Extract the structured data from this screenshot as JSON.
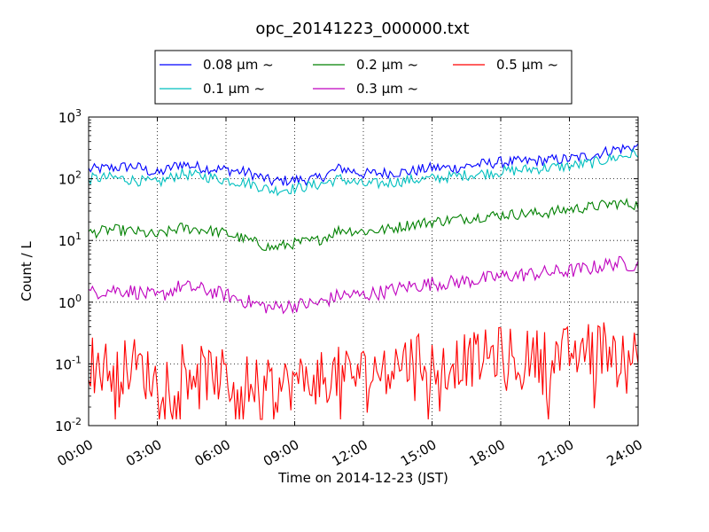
{
  "chart_data": {
    "type": "line",
    "title": "opc_20141223_000000.txt",
    "xlabel": "Time on 2014-12-23 (JST)",
    "ylabel": "Count / L",
    "x_ticks": [
      "00:00",
      "03:00",
      "06:00",
      "09:00",
      "12:00",
      "15:00",
      "18:00",
      "21:00",
      "24:00"
    ],
    "y_ticks": [
      {
        "base": "10",
        "exp": "-2"
      },
      {
        "base": "10",
        "exp": "-1"
      },
      {
        "base": "10",
        "exp": "0"
      },
      {
        "base": "10",
        "exp": "1"
      },
      {
        "base": "10",
        "exp": "2"
      },
      {
        "base": "10",
        "exp": "3"
      }
    ],
    "x_range_hours": [
      0,
      24
    ],
    "ylim": [
      0.01,
      1000
    ],
    "y_scale": "log",
    "grid": true,
    "legend_placement": "top-center",
    "series": [
      {
        "name": "0.08 μm ~",
        "color": "#0000ff",
        "x_hours": [
          0,
          1,
          2,
          3,
          4,
          5,
          6,
          7,
          8,
          9,
          10,
          11,
          12,
          13,
          14,
          15,
          16,
          17,
          18,
          19,
          20,
          21,
          22,
          23,
          24
        ],
        "values": [
          140,
          150,
          160,
          120,
          175,
          150,
          140,
          125,
          90,
          95,
          100,
          150,
          120,
          125,
          130,
          150,
          150,
          170,
          185,
          190,
          200,
          210,
          240,
          300,
          330
        ]
      },
      {
        "name": "0.1 μm ~",
        "color": "#00bfbf",
        "x_hours": [
          0,
          1,
          2,
          3,
          4,
          5,
          6,
          7,
          8,
          9,
          10,
          11,
          12,
          13,
          14,
          15,
          16,
          17,
          18,
          19,
          20,
          21,
          22,
          23,
          24
        ],
        "values": [
          100,
          105,
          95,
          85,
          120,
          110,
          95,
          85,
          65,
          70,
          80,
          100,
          80,
          85,
          95,
          100,
          110,
          120,
          130,
          140,
          150,
          160,
          180,
          220,
          260
        ]
      },
      {
        "name": "0.2 μm ~",
        "color": "#008000",
        "x_hours": [
          0,
          1,
          2,
          3,
          4,
          5,
          6,
          7,
          8,
          9,
          10,
          11,
          12,
          13,
          14,
          15,
          16,
          17,
          18,
          19,
          20,
          21,
          22,
          23,
          24
        ],
        "values": [
          13,
          15,
          14,
          12,
          16,
          15,
          13,
          10,
          7.5,
          9,
          10,
          15,
          14,
          15,
          18,
          20,
          22,
          24,
          26,
          27,
          28,
          32,
          35,
          40,
          38
        ]
      },
      {
        "name": "0.3 μm ~",
        "color": "#bf00bf",
        "x_hours": [
          0,
          1,
          2,
          3,
          4,
          5,
          6,
          7,
          8,
          9,
          10,
          11,
          12,
          13,
          14,
          15,
          16,
          17,
          18,
          19,
          20,
          21,
          22,
          23,
          24
        ],
        "values": [
          1.4,
          1.6,
          1.5,
          1.2,
          1.8,
          1.6,
          1.3,
          1.0,
          0.8,
          0.9,
          0.95,
          1.3,
          1.3,
          1.5,
          1.8,
          2.0,
          2.1,
          2.3,
          2.6,
          2.8,
          3.0,
          3.2,
          3.6,
          4.3,
          4.0
        ]
      },
      {
        "name": "0.5 μm ~",
        "color": "#ff0000",
        "x_hours": [
          0,
          1,
          2,
          3,
          4,
          5,
          6,
          7,
          8,
          9,
          10,
          11,
          12,
          13,
          14,
          15,
          16,
          17,
          18,
          19,
          20,
          21,
          22,
          23,
          24
        ],
        "values": [
          0.12,
          0.08,
          0.1,
          0.05,
          0.1,
          0.07,
          0.06,
          0.05,
          0.04,
          0.05,
          0.06,
          0.07,
          0.07,
          0.09,
          0.12,
          0.1,
          0.11,
          0.12,
          0.15,
          0.13,
          0.14,
          0.15,
          0.18,
          0.2,
          0.15
        ]
      }
    ]
  }
}
